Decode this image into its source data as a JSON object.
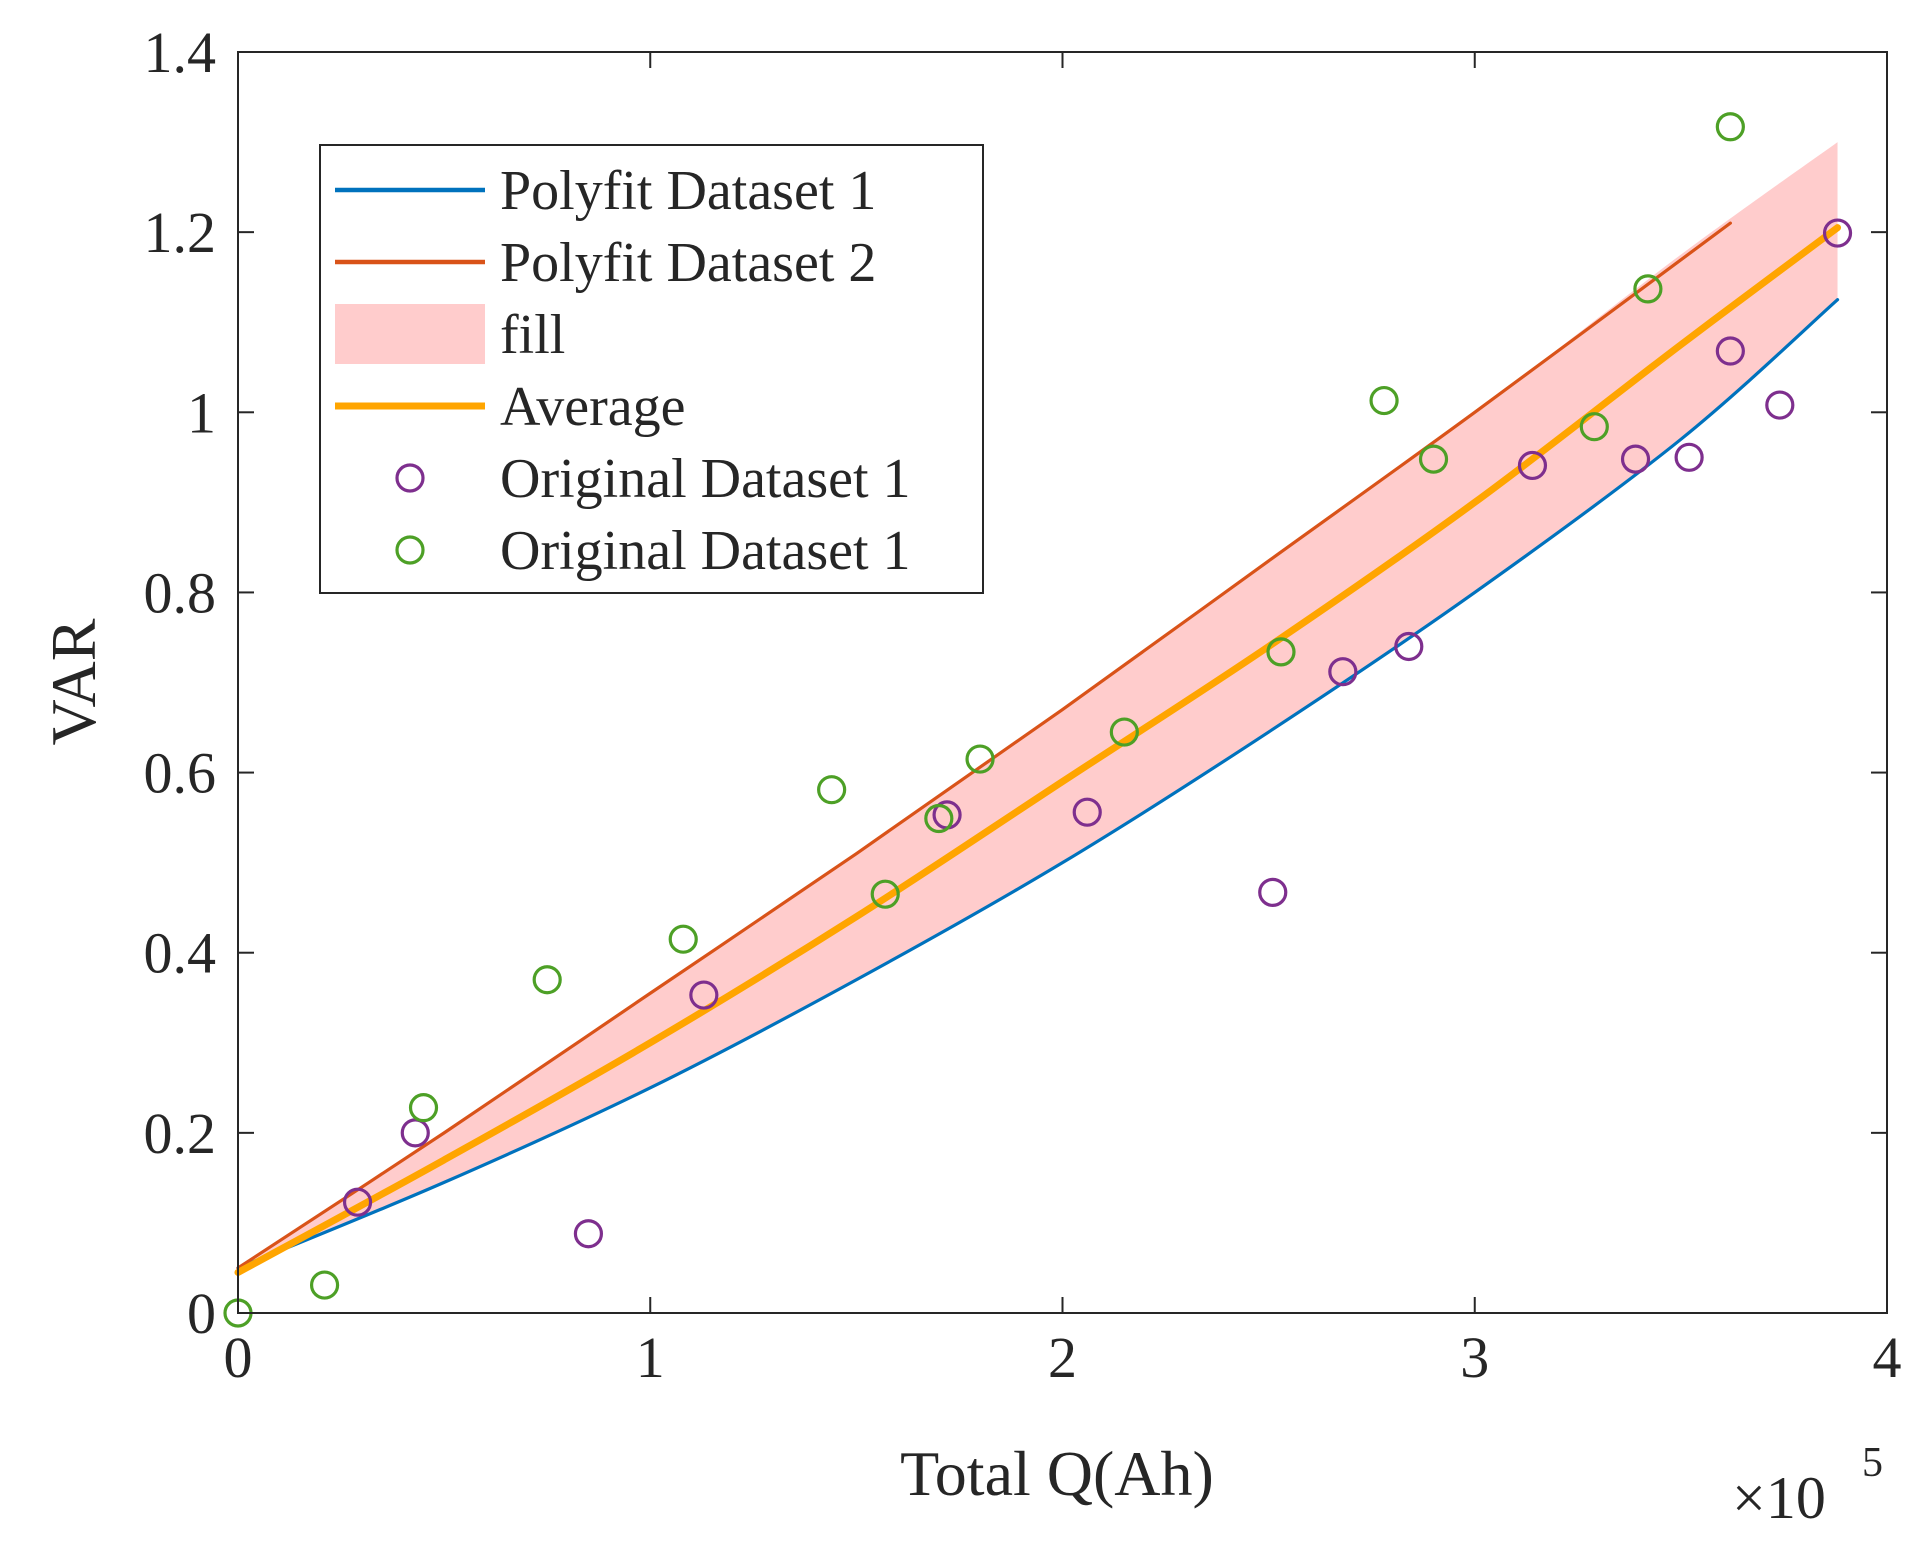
{
  "chart_data": {
    "type": "line",
    "title": "",
    "xlabel": "Total Q(Ah)",
    "ylabel": "VAR",
    "x_multiplier_label": {
      "base": "×10",
      "exponent": "5"
    },
    "xlim": [
      0,
      400000
    ],
    "ylim": [
      0,
      1.4
    ],
    "x_ticks": [
      {
        "value": 0,
        "label": "0"
      },
      {
        "value": 100000,
        "label": "1"
      },
      {
        "value": 200000,
        "label": "2"
      },
      {
        "value": 300000,
        "label": "3"
      },
      {
        "value": 400000,
        "label": "4"
      }
    ],
    "y_ticks": [
      {
        "value": 0,
        "label": "0"
      },
      {
        "value": 0.2,
        "label": "0.2"
      },
      {
        "value": 0.4,
        "label": "0.4"
      },
      {
        "value": 0.6,
        "label": "0.6"
      },
      {
        "value": 0.8,
        "label": "0.8"
      },
      {
        "value": 1.0,
        "label": "1"
      },
      {
        "value": 1.2,
        "label": "1.2"
      },
      {
        "value": 1.4,
        "label": "1.4"
      }
    ],
    "grid": false,
    "legend_position": "top-left",
    "series": [
      {
        "name": "Polyfit Dataset 1",
        "kind": "line",
        "color": "#0072BD",
        "x": [
          0,
          50000,
          100000,
          150000,
          200000,
          250000,
          300000,
          350000,
          388000
        ],
        "y": [
          0.05,
          0.145,
          0.25,
          0.37,
          0.5,
          0.645,
          0.8,
          0.97,
          1.125
        ]
      },
      {
        "name": "Polyfit Dataset 2",
        "kind": "line",
        "color": "#D95319",
        "x": [
          0,
          50000,
          100000,
          150000,
          200000,
          250000,
          300000,
          362000
        ],
        "y": [
          0.05,
          0.2,
          0.355,
          0.51,
          0.67,
          0.835,
          1.0,
          1.21
        ]
      },
      {
        "name": "fill",
        "kind": "area",
        "color": "#FFCCCC",
        "x": [
          0,
          50000,
          100000,
          150000,
          200000,
          250000,
          300000,
          350000,
          388000
        ],
        "y_lower": [
          0.05,
          0.145,
          0.25,
          0.37,
          0.5,
          0.645,
          0.8,
          0.97,
          1.125
        ],
        "y_upper": [
          0.05,
          0.2,
          0.355,
          0.51,
          0.67,
          0.835,
          1.0,
          1.175,
          1.3
        ]
      },
      {
        "name": "Average",
        "kind": "line",
        "color": "#FFA500",
        "x": [
          0,
          50000,
          100000,
          150000,
          200000,
          250000,
          300000,
          350000,
          388000
        ],
        "y": [
          0.045,
          0.17,
          0.3,
          0.44,
          0.59,
          0.74,
          0.9,
          1.075,
          1.205
        ]
      },
      {
        "name": "Original Dataset 1",
        "kind": "scatter",
        "color": "#7E2F8E",
        "x": [
          29000,
          43000,
          85000,
          113000,
          172000,
          206000,
          251000,
          268000,
          284000,
          314000,
          339000,
          352000,
          362000,
          374000,
          388000
        ],
        "y": [
          0.123,
          0.2,
          0.088,
          0.353,
          0.553,
          0.556,
          0.467,
          0.712,
          0.74,
          0.941,
          0.948,
          0.95,
          1.068,
          1.008,
          1.199
        ]
      },
      {
        "name": "Original Dataset 1",
        "kind": "scatter",
        "color": "#4DA026",
        "x": [
          0,
          21000,
          45000,
          75000,
          108000,
          144000,
          157000,
          170000,
          180000,
          215000,
          253000,
          278000,
          290000,
          329000,
          342000,
          362000
        ],
        "y": [
          0.0,
          0.031,
          0.228,
          0.37,
          0.415,
          0.581,
          0.465,
          0.549,
          0.615,
          0.645,
          0.734,
          1.013,
          0.948,
          0.984,
          1.137,
          1.317
        ]
      }
    ]
  }
}
